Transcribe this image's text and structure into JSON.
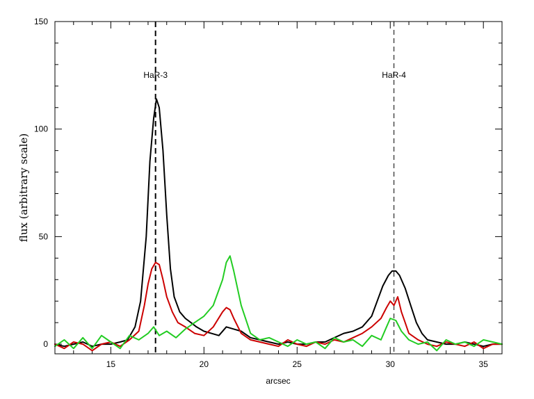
{
  "chart_data": {
    "type": "line",
    "title": "",
    "xlabel": "arcsec",
    "ylabel": "flux (arbitrary scale)",
    "xlim": [
      12,
      36
    ],
    "ylim": [
      -4.5,
      150
    ],
    "xticks": [
      15,
      20,
      25,
      30,
      35
    ],
    "yticks": [
      0,
      50,
      100,
      150
    ],
    "grid": false,
    "legend": "none",
    "annotations": [
      {
        "label": "HaR-3",
        "x": 17.4,
        "style": "dashed-thick"
      },
      {
        "label": "HaR-4",
        "x": 30.2,
        "style": "dashed-thin"
      }
    ],
    "series": [
      {
        "color": "#000000",
        "x": [
          12.0,
          12.5,
          13.0,
          13.5,
          14.0,
          14.5,
          15.0,
          15.5,
          15.9,
          16.3,
          16.6,
          16.9,
          17.1,
          17.3,
          17.45,
          17.6,
          17.8,
          18.0,
          18.2,
          18.4,
          18.7,
          19.0,
          19.3,
          19.6,
          20.0,
          20.4,
          20.8,
          21.2,
          21.6,
          22.0,
          22.5,
          23.0,
          23.5,
          24.0,
          24.5,
          25.0,
          25.5,
          26.0,
          26.5,
          27.0,
          27.5,
          28.0,
          28.5,
          29.0,
          29.3,
          29.6,
          29.9,
          30.1,
          30.3,
          30.5,
          30.8,
          31.1,
          31.4,
          31.7,
          32.0,
          32.5,
          33.0,
          33.5,
          34.0,
          34.5,
          35.0,
          35.5,
          36.0
        ],
        "y": [
          0,
          -1,
          0,
          1,
          -1,
          0,
          0,
          1,
          2,
          8,
          20,
          50,
          85,
          105,
          114,
          110,
          90,
          60,
          35,
          22,
          15,
          12,
          10,
          8,
          6,
          5,
          4,
          8,
          7,
          6,
          3,
          2,
          1,
          0,
          1,
          0,
          0,
          1,
          1,
          3,
          5,
          6,
          8,
          13,
          20,
          27,
          32,
          34,
          34,
          32,
          26,
          18,
          10,
          5,
          2,
          1,
          0,
          0,
          1,
          0,
          -1,
          0,
          0
        ]
      },
      {
        "color": "#cc0000",
        "x": [
          12.0,
          12.5,
          13.0,
          13.5,
          14.0,
          14.5,
          15.0,
          15.5,
          16.0,
          16.5,
          16.8,
          17.0,
          17.2,
          17.4,
          17.6,
          17.8,
          18.0,
          18.3,
          18.6,
          19.0,
          19.5,
          20.0,
          20.5,
          21.0,
          21.2,
          21.4,
          21.6,
          22.0,
          22.5,
          23.0,
          23.5,
          24.0,
          24.5,
          25.0,
          25.5,
          26.0,
          26.5,
          27.0,
          27.5,
          28.0,
          28.5,
          29.0,
          29.5,
          29.8,
          30.0,
          30.2,
          30.4,
          30.6,
          30.8,
          31.0,
          31.5,
          32.0,
          32.5,
          33.0,
          33.5,
          34.0,
          34.5,
          35.0,
          35.5,
          36.0
        ],
        "y": [
          0,
          -2,
          1,
          0,
          -3,
          0,
          1,
          -1,
          2,
          6,
          18,
          28,
          35,
          38,
          37,
          30,
          22,
          15,
          10,
          8,
          5,
          4,
          8,
          15,
          17,
          16,
          12,
          5,
          2,
          1,
          0,
          -1,
          2,
          0,
          -1,
          1,
          0,
          2,
          1,
          3,
          5,
          8,
          12,
          17,
          20,
          18,
          22,
          15,
          10,
          5,
          2,
          0,
          -1,
          1,
          0,
          -1,
          1,
          -2,
          0,
          0
        ]
      },
      {
        "color": "#22cc22",
        "x": [
          12.0,
          12.5,
          13.0,
          13.5,
          14.0,
          14.5,
          15.0,
          15.5,
          16.0,
          16.5,
          17.0,
          17.3,
          17.6,
          18.0,
          18.5,
          19.0,
          19.5,
          20.0,
          20.5,
          21.0,
          21.2,
          21.4,
          21.6,
          22.0,
          22.5,
          23.0,
          23.5,
          24.0,
          24.5,
          25.0,
          25.5,
          26.0,
          26.5,
          27.0,
          27.5,
          28.0,
          28.5,
          29.0,
          29.5,
          29.8,
          30.0,
          30.3,
          30.6,
          31.0,
          31.5,
          32.0,
          32.5,
          33.0,
          33.5,
          34.0,
          34.5,
          35.0,
          35.5,
          36.0
        ],
        "y": [
          -1,
          2,
          -2,
          3,
          -2,
          4,
          1,
          -2,
          4,
          2,
          5,
          8,
          4,
          6,
          3,
          7,
          10,
          13,
          18,
          30,
          38,
          41,
          34,
          18,
          5,
          2,
          3,
          1,
          -1,
          2,
          0,
          1,
          -2,
          3,
          1,
          2,
          -1,
          4,
          2,
          8,
          12,
          11,
          6,
          2,
          0,
          1,
          -3,
          2,
          0,
          1,
          -1,
          2,
          1,
          0
        ]
      }
    ]
  }
}
